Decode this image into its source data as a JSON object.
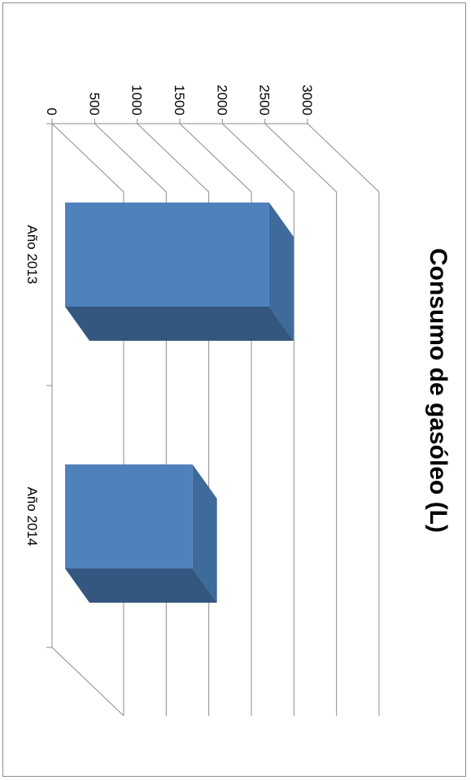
{
  "chart_data": {
    "type": "bar",
    "title": "Consumo de gasóleo (L)",
    "categories": [
      "Año 2013",
      "Año 2014"
    ],
    "values": [
      2550,
      1650
    ],
    "ylim": [
      0,
      3000
    ],
    "yticks": [
      0,
      500,
      1000,
      1500,
      2000,
      2500,
      3000
    ],
    "xlabel": "",
    "ylabel": "",
    "grid": true,
    "legend": "none",
    "orientation": "rotated 90° clockwise",
    "style": "3D",
    "colors": {
      "bar_front": "#4f81bd",
      "bar_top": "#3e6a9c",
      "bar_side": "#34577f",
      "grid": "#8c8c8c",
      "text": "#000000"
    }
  }
}
